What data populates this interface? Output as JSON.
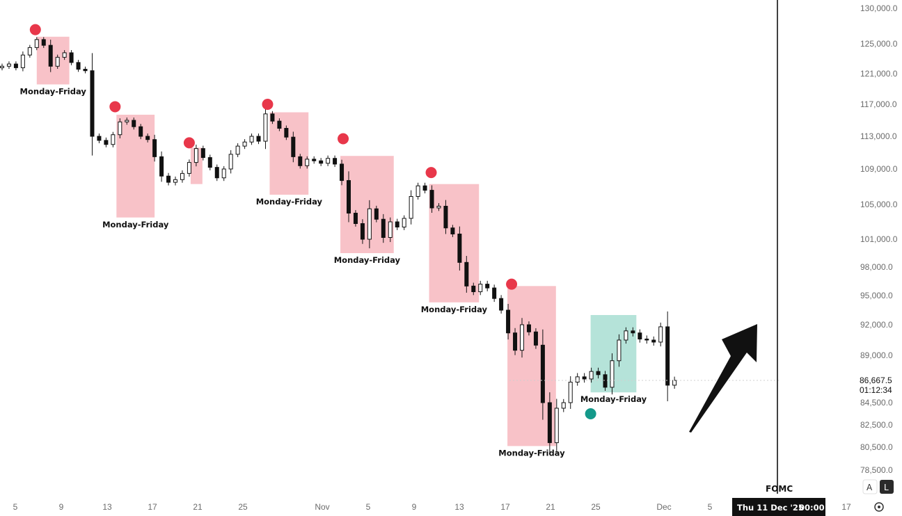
{
  "chart_data": {
    "type": "candlestick",
    "y_axis": {
      "ticks": [
        130000,
        125000,
        121000,
        117000,
        113000,
        109000,
        105000,
        101000,
        98000,
        95000,
        92000,
        89000,
        86667.5,
        84500,
        82500,
        80500,
        78500
      ],
      "tick_labels": [
        "130,000.0",
        "125,000.0",
        "121,000.0",
        "117,000.0",
        "113,000.0",
        "109,000.0",
        "105,000.0",
        "101,000.0",
        "98,000.0",
        "95,000.0",
        "92,000.0",
        "89,000.0",
        "84,500.0",
        "82,500.0",
        "80,500.0",
        "78,500.0"
      ],
      "current_price": "86,667.5",
      "countdown": "01:12:34"
    },
    "x_axis": {
      "tick_labels": [
        "5",
        "9",
        "13",
        "17",
        "21",
        "25",
        "Nov",
        "5",
        "9",
        "13",
        "17",
        "21",
        "25",
        "Dec",
        "5",
        "17"
      ]
    },
    "series": [
      {
        "closes": [
          122000,
          122300,
          121800,
          123500,
          124500,
          125600,
          124800,
          122000,
          123200,
          123800,
          122500,
          121600,
          121400,
          113000,
          112500,
          112000,
          113200,
          114800,
          115000,
          114200,
          113000,
          112600,
          110500,
          108200,
          107500,
          107800,
          108500,
          109800,
          111500,
          110400,
          109200,
          108000,
          109000,
          110800,
          111800,
          112300,
          113000,
          112400,
          115800,
          114900,
          114000,
          112900,
          110500,
          109400,
          110200,
          110000,
          109700,
          110300,
          109600,
          107700,
          104000,
          102800,
          101000,
          104500,
          103300,
          101200,
          103000,
          102400,
          103400,
          105900,
          107100,
          106600,
          104600,
          104800,
          102300,
          101600,
          98500,
          96000,
          95400,
          96200,
          95800,
          94700,
          93500,
          91200,
          89500,
          92000,
          91300,
          90000,
          84500,
          80900,
          84000,
          84500,
          86500,
          87000,
          86800,
          87500,
          87200,
          86000,
          88500,
          90500,
          91400,
          91200,
          90600,
          90500,
          90300,
          91800,
          86200,
          86667.5
        ]
      }
    ],
    "annotations": {
      "box_label": "Monday-Friday",
      "event_label": "FOMC",
      "event_date": "Thu 11 Dec '25",
      "event_time": "00:00",
      "red_boxes": [
        {
          "high": 126000,
          "low": 119600
        },
        {
          "high": 115700,
          "low": 103500
        },
        {
          "high": 111600,
          "low": 107300
        },
        {
          "high": 116000,
          "low": 106100
        },
        {
          "high": 110600,
          "low": 99500
        },
        {
          "high": 107300,
          "low": 94300
        },
        {
          "high": 96000,
          "low": 80600
        }
      ],
      "green_boxes": [
        {
          "high": 93000,
          "low": 85500
        }
      ],
      "red_dots": [
        127000,
        116700,
        112200,
        117000,
        112700,
        108600,
        96200
      ],
      "green_dots": [
        83500
      ]
    },
    "colors": {
      "red_box": "#f8c2c8",
      "green_box": "#b5e3d9",
      "red_dot": "#e8374a",
      "green_dot": "#14998a",
      "candle": "#111111"
    }
  },
  "controls": {
    "auto_label": "A",
    "log_label": "L"
  }
}
